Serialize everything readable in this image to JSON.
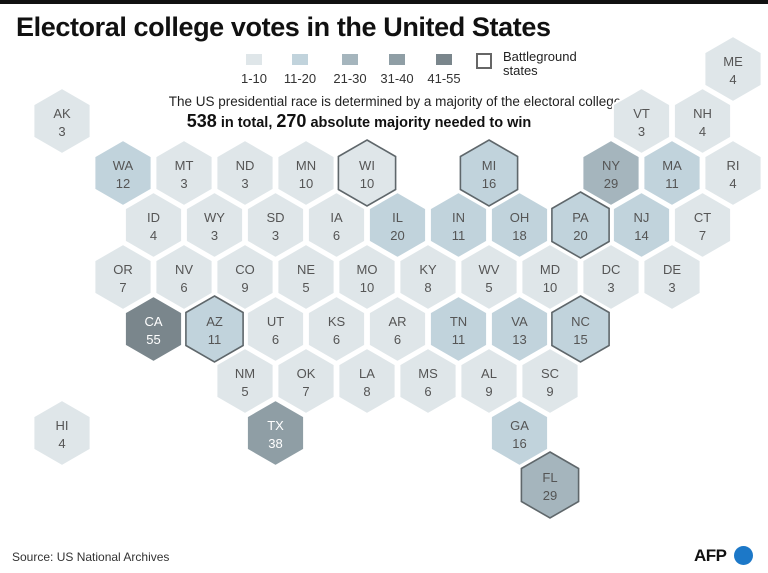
{
  "title": "Electoral college votes in the United States",
  "legend": {
    "bins": [
      {
        "label": "1-10",
        "color": "#dfe6e9"
      },
      {
        "label": "11-20",
        "color": "#c1d3dc"
      },
      {
        "label": "21-30",
        "color": "#a5b5bd"
      },
      {
        "label": "31-40",
        "color": "#8f9ea5"
      },
      {
        "label": "41-55",
        "color": "#7a868c"
      }
    ],
    "battleground_label_line1": "Battleground",
    "battleground_label_line2": "states"
  },
  "subtitle": "The US presidential race is determined by a majority of the electoral college",
  "summary": {
    "total": "538",
    "total_text": "in total,",
    "majority": "270",
    "majority_text": "absolute majority needed to win"
  },
  "source": "Source: US National Archives",
  "logo": "AFP",
  "states": [
    {
      "abbr": "AK",
      "votes": 3,
      "col": 0,
      "row": 0,
      "battleground": false
    },
    {
      "abbr": "ME",
      "votes": 4,
      "col": 11,
      "row": -1,
      "battleground": false
    },
    {
      "abbr": "VT",
      "votes": 3,
      "col": 9.5,
      "row": 0,
      "battleground": false
    },
    {
      "abbr": "NH",
      "votes": 4,
      "col": 10.5,
      "row": 0,
      "battleground": false
    },
    {
      "abbr": "WA",
      "votes": 12,
      "col": 1,
      "row": 1,
      "battleground": false
    },
    {
      "abbr": "MT",
      "votes": 3,
      "col": 2,
      "row": 1,
      "battleground": false
    },
    {
      "abbr": "ND",
      "votes": 3,
      "col": 3,
      "row": 1,
      "battleground": false
    },
    {
      "abbr": "MN",
      "votes": 10,
      "col": 4,
      "row": 1,
      "battleground": false
    },
    {
      "abbr": "WI",
      "votes": 10,
      "col": 5,
      "row": 1,
      "battleground": true
    },
    {
      "abbr": "MI",
      "votes": 16,
      "col": 7,
      "row": 1,
      "battleground": true
    },
    {
      "abbr": "NY",
      "votes": 29,
      "col": 9,
      "row": 1,
      "battleground": false
    },
    {
      "abbr": "MA",
      "votes": 11,
      "col": 10,
      "row": 1,
      "battleground": false
    },
    {
      "abbr": "RI",
      "votes": 4,
      "col": 11,
      "row": 1,
      "battleground": false
    },
    {
      "abbr": "ID",
      "votes": 4,
      "col": 1.5,
      "row": 2,
      "battleground": false
    },
    {
      "abbr": "WY",
      "votes": 3,
      "col": 2.5,
      "row": 2,
      "battleground": false
    },
    {
      "abbr": "SD",
      "votes": 3,
      "col": 3.5,
      "row": 2,
      "battleground": false
    },
    {
      "abbr": "IA",
      "votes": 6,
      "col": 4.5,
      "row": 2,
      "battleground": false
    },
    {
      "abbr": "IL",
      "votes": 20,
      "col": 5.5,
      "row": 2,
      "battleground": false
    },
    {
      "abbr": "IN",
      "votes": 11,
      "col": 6.5,
      "row": 2,
      "battleground": false
    },
    {
      "abbr": "OH",
      "votes": 18,
      "col": 7.5,
      "row": 2,
      "battleground": false
    },
    {
      "abbr": "PA",
      "votes": 20,
      "col": 8.5,
      "row": 2,
      "battleground": true
    },
    {
      "abbr": "NJ",
      "votes": 14,
      "col": 9.5,
      "row": 2,
      "battleground": false
    },
    {
      "abbr": "CT",
      "votes": 7,
      "col": 10.5,
      "row": 2,
      "battleground": false
    },
    {
      "abbr": "OR",
      "votes": 7,
      "col": 1,
      "row": 3,
      "battleground": false
    },
    {
      "abbr": "NV",
      "votes": 6,
      "col": 2,
      "row": 3,
      "battleground": false
    },
    {
      "abbr": "CO",
      "votes": 9,
      "col": 3,
      "row": 3,
      "battleground": false
    },
    {
      "abbr": "NE",
      "votes": 5,
      "col": 4,
      "row": 3,
      "battleground": false
    },
    {
      "abbr": "MO",
      "votes": 10,
      "col": 5,
      "row": 3,
      "battleground": false
    },
    {
      "abbr": "KY",
      "votes": 8,
      "col": 6,
      "row": 3,
      "battleground": false
    },
    {
      "abbr": "WV",
      "votes": 5,
      "col": 7,
      "row": 3,
      "battleground": false
    },
    {
      "abbr": "MD",
      "votes": 10,
      "col": 8,
      "row": 3,
      "battleground": false
    },
    {
      "abbr": "DC",
      "votes": 3,
      "col": 9,
      "row": 3,
      "battleground": false
    },
    {
      "abbr": "DE",
      "votes": 3,
      "col": 10,
      "row": 3,
      "battleground": false
    },
    {
      "abbr": "CA",
      "votes": 55,
      "col": 1.5,
      "row": 4,
      "battleground": false
    },
    {
      "abbr": "AZ",
      "votes": 11,
      "col": 2.5,
      "row": 4,
      "battleground": true
    },
    {
      "abbr": "UT",
      "votes": 6,
      "col": 3.5,
      "row": 4,
      "battleground": false
    },
    {
      "abbr": "KS",
      "votes": 6,
      "col": 4.5,
      "row": 4,
      "battleground": false
    },
    {
      "abbr": "AR",
      "votes": 6,
      "col": 5.5,
      "row": 4,
      "battleground": false
    },
    {
      "abbr": "TN",
      "votes": 11,
      "col": 6.5,
      "row": 4,
      "battleground": false
    },
    {
      "abbr": "VA",
      "votes": 13,
      "col": 7.5,
      "row": 4,
      "battleground": false
    },
    {
      "abbr": "NC",
      "votes": 15,
      "col": 8.5,
      "row": 4,
      "battleground": true
    },
    {
      "abbr": "NM",
      "votes": 5,
      "col": 3,
      "row": 5,
      "battleground": false
    },
    {
      "abbr": "OK",
      "votes": 7,
      "col": 4,
      "row": 5,
      "battleground": false
    },
    {
      "abbr": "LA",
      "votes": 8,
      "col": 5,
      "row": 5,
      "battleground": false
    },
    {
      "abbr": "MS",
      "votes": 6,
      "col": 6,
      "row": 5,
      "battleground": false
    },
    {
      "abbr": "AL",
      "votes": 9,
      "col": 7,
      "row": 5,
      "battleground": false
    },
    {
      "abbr": "SC",
      "votes": 9,
      "col": 8,
      "row": 5,
      "battleground": false
    },
    {
      "abbr": "HI",
      "votes": 4,
      "col": 0,
      "row": 6,
      "battleground": false
    },
    {
      "abbr": "TX",
      "votes": 38,
      "col": 3.5,
      "row": 6,
      "battleground": false
    },
    {
      "abbr": "GA",
      "votes": 16,
      "col": 7.5,
      "row": 6,
      "battleground": false
    },
    {
      "abbr": "FL",
      "votes": 29,
      "col": 8,
      "row": 7,
      "battleground": true
    }
  ]
}
